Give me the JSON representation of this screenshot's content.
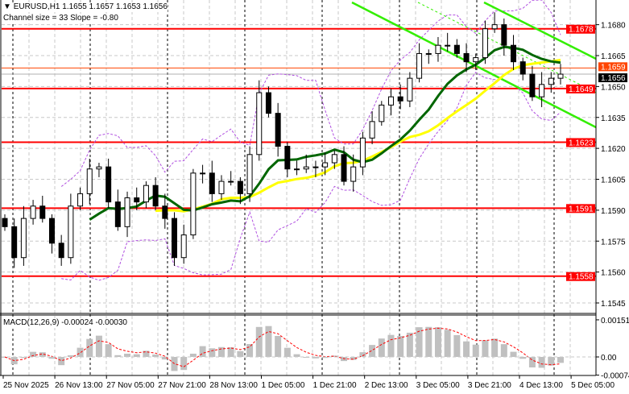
{
  "header": {
    "symbol_line": "EURUSD,H1  1.1655 1.1657 1.1653 1.1656",
    "channel_line": "Channel size = 33 Slope = -0.80",
    "macd_label": "MACD(12,26,9) -0.00024 -0.00030"
  },
  "colors": {
    "level": "#ff0000",
    "ask": "#ff4500",
    "bid_label": "#000000",
    "channel": "#33ee00",
    "ma_fast": "#006600",
    "ma_slow": "#ffff00",
    "bands": "#b050e0",
    "macd_hist": "#c0c0c0",
    "macd_signal": "#ff0000"
  },
  "chart_data": {
    "type": "candlestick",
    "title": "EURUSD,H1",
    "ohlc_last": {
      "open": 1.1655,
      "high": 1.1657,
      "low": 1.1653,
      "close": 1.1656
    },
    "closes": [
      1.1582,
      1.1567,
      1.1586,
      1.1592,
      1.1586,
      1.1574,
      1.1567,
      1.1592,
      1.1598,
      1.161,
      1.1611,
      1.1594,
      1.1582,
      1.1596,
      1.1594,
      1.1602,
      1.1592,
      1.1586,
      1.1567,
      1.1578,
      1.1608,
      1.1608,
      1.1598,
      1.1604,
      1.1604,
      1.1598,
      1.1617,
      1.1647,
      1.1637,
      1.1621,
      1.161,
      1.161,
      1.1611,
      1.1611,
      1.1613,
      1.1617,
      1.1604,
      1.1611,
      1.1625,
      1.1633,
      1.1641,
      1.1645,
      1.1643,
      1.1654,
      1.1666,
      1.1666,
      1.167,
      1.167,
      1.1666,
      1.1662,
      1.1664,
      1.1678,
      1.168,
      1.167,
      1.1662,
      1.1656,
      1.1645,
      1.1651,
      1.1654,
      1.1656
    ],
    "ylim": [
      1.1535,
      1.1693
    ],
    "price_ticks": [
      "1.1545",
      "1.1560",
      "1.1575",
      "1.1590",
      "1.1605",
      "1.1620",
      "1.1635",
      "1.1650",
      "1.1665",
      "1.1680"
    ],
    "levels": [
      {
        "label": "1.1678",
        "value": 1.1678
      },
      {
        "label": "1.1649",
        "value": 1.1649
      },
      {
        "label": "1.1623",
        "value": 1.1623
      },
      {
        "label": "1.1591",
        "value": 1.1591
      },
      {
        "label": "1.1558",
        "value": 1.1558
      }
    ],
    "ask": {
      "label": "1.1659",
      "value": 1.1659
    },
    "bid": {
      "label": "1.1656",
      "value": 1.1656
    },
    "time_labels": [
      "25 Nov 2025",
      "26 Nov 13:00",
      "27 Nov 05:00",
      "27 Nov 21:00",
      "28 Nov 13:00",
      "1 Dec 05:00",
      "1 Dec 21:00",
      "2 Dec 13:00",
      "3 Dec 05:00",
      "3 Dec 21:00",
      "4 Dec 13:00",
      "5 Dec 05:00"
    ],
    "macd": {
      "ticks": [
        "0.00151",
        "0.00",
        "-0.00074"
      ],
      "tick_values": [
        0.00151,
        0,
        -0.00074
      ],
      "last_macd": -0.00024,
      "last_signal": -0.0003
    }
  }
}
